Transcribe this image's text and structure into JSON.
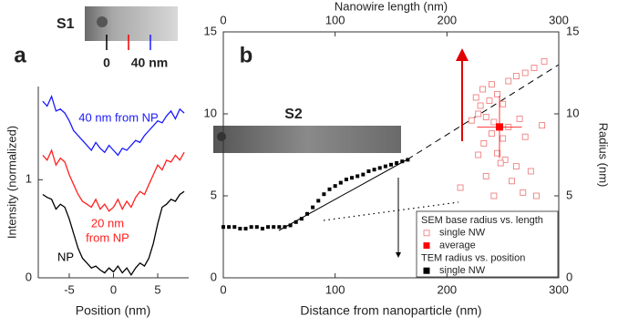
{
  "chart_data": [
    {
      "type": "line",
      "panel_label": "a",
      "xlabel": "Position (nm)",
      "ylabel": "Intensity (normalized)",
      "xlim": [
        -8.5,
        8.5
      ],
      "xticks": [
        -5,
        0,
        5
      ],
      "ylim": [
        0,
        1.95
      ],
      "yticks": [
        0,
        1
      ],
      "x": [
        -8,
        -7.5,
        -7,
        -6.5,
        -6,
        -5.5,
        -5,
        -4.5,
        -4,
        -3.5,
        -3,
        -2.5,
        -2,
        -1.5,
        -1,
        -0.5,
        0,
        0.5,
        1,
        1.5,
        2,
        2.5,
        3,
        3.5,
        4,
        4.5,
        5,
        5.5,
        6,
        6.5,
        7,
        7.5,
        8
      ],
      "series": [
        {
          "color": "#1a1aff",
          "values": [
            1.8,
            1.75,
            1.85,
            1.7,
            1.72,
            1.68,
            1.6,
            1.5,
            1.45,
            1.4,
            1.35,
            1.3,
            1.38,
            1.32,
            1.28,
            1.35,
            1.3,
            1.25,
            1.32,
            1.3,
            1.35,
            1.4,
            1.38,
            1.45,
            1.5,
            1.55,
            1.6,
            1.58,
            1.65,
            1.7,
            1.62,
            1.72,
            1.68
          ]
        },
        {
          "color": "#ff2020",
          "values": [
            1.25,
            1.2,
            1.3,
            1.15,
            1.22,
            1.18,
            1.05,
            0.95,
            0.85,
            0.78,
            0.75,
            0.72,
            0.8,
            0.7,
            0.75,
            0.68,
            0.72,
            0.8,
            0.7,
            0.78,
            0.72,
            0.82,
            0.88,
            0.85,
            0.95,
            1.05,
            1.15,
            1.1,
            1.2,
            1.18,
            1.25,
            1.2,
            1.28
          ]
        },
        {
          "color": "#000000",
          "values": [
            0.85,
            0.82,
            0.8,
            0.7,
            0.75,
            0.72,
            0.6,
            0.45,
            0.3,
            0.2,
            0.15,
            0.1,
            0.12,
            0.08,
            0.05,
            0.1,
            0.06,
            0.12,
            0.05,
            0.1,
            0.03,
            0.1,
            0.15,
            0.12,
            0.2,
            0.35,
            0.55,
            0.72,
            0.75,
            0.8,
            0.78,
            0.85,
            0.88
          ]
        }
      ],
      "annotations": [
        {
          "text": "40 nm from NP",
          "color": "#1a1aff"
        },
        {
          "text": "20 nm",
          "color": "#ff2020"
        },
        {
          "text": "from NP",
          "color": "#ff2020"
        },
        {
          "text": "NP",
          "color": "#000000"
        }
      ],
      "inset": {
        "label": "S1",
        "scale_labels": [
          "0",
          "40 nm"
        ]
      }
    },
    {
      "type": "scatter",
      "panel_label": "b",
      "xlabel": "Distance from nanoparticle (nm)",
      "x2label": "Nanowire length (nm)",
      "y2label": "Radius (nm)",
      "xlim": [
        0,
        300
      ],
      "xticks": [
        0,
        100,
        200,
        300
      ],
      "x2lim": [
        0,
        300
      ],
      "x2ticks": [
        0,
        100,
        200,
        300
      ],
      "ylim": [
        0,
        15
      ],
      "yticks": [
        0,
        5,
        10,
        15
      ],
      "y2lim": [
        0,
        15
      ],
      "y2ticks": [
        0,
        5,
        10,
        15
      ],
      "legend": {
        "position": "lower right",
        "titles": [
          "SEM base radius vs. length",
          "TEM radius vs. position"
        ]
      },
      "series": [
        {
          "name": "single NW",
          "color": "#f08080",
          "marker": "open-square",
          "x": [
            287,
            278,
            270,
            262,
            255,
            240,
            232,
            226,
            230,
            238,
            245,
            250,
            228,
            235,
            242,
            222,
            255,
            265,
            240,
            250,
            233,
            270,
            285,
            245,
            252,
            248,
            262,
            275,
            235,
            258,
            242,
            268,
            280,
            212,
            228
          ],
          "values": [
            13.2,
            12.8,
            12.5,
            12.3,
            12.0,
            11.8,
            11.5,
            11.0,
            10.5,
            10.8,
            11.2,
            10.6,
            10.0,
            9.8,
            9.5,
            9.6,
            9.2,
            9.7,
            8.8,
            8.5,
            8.2,
            8.6,
            9.3,
            7.6,
            7.2,
            7.0,
            6.8,
            6.5,
            6.2,
            5.9,
            5.0,
            5.2,
            5.0,
            5.5,
            7.5
          ]
        },
        {
          "name": "average",
          "color": "#ff0000",
          "marker": "filled-square",
          "x": [
            247
          ],
          "values": [
            9.2
          ],
          "x_error": [
            20
          ],
          "y_error": [
            1.9
          ]
        },
        {
          "name": "single NW",
          "color": "#000000",
          "marker": "filled-square",
          "x": [
            0,
            5,
            10,
            15,
            20,
            25,
            30,
            35,
            40,
            45,
            50,
            55,
            60,
            65,
            70,
            75,
            80,
            85,
            90,
            95,
            100,
            105,
            110,
            115,
            120,
            125,
            130,
            135,
            140,
            145,
            150,
            155,
            160,
            165
          ],
          "values": [
            3.1,
            3.1,
            3.1,
            3.0,
            3.0,
            3.1,
            3.1,
            3.0,
            3.1,
            3.1,
            3.1,
            3.1,
            3.2,
            3.4,
            3.6,
            3.9,
            4.3,
            4.7,
            5.1,
            5.4,
            5.6,
            5.8,
            6.0,
            6.1,
            6.2,
            6.3,
            6.5,
            6.6,
            6.7,
            6.8,
            6.9,
            7.0,
            7.1,
            7.2
          ]
        }
      ],
      "inset": {
        "label": "S2"
      }
    }
  ]
}
